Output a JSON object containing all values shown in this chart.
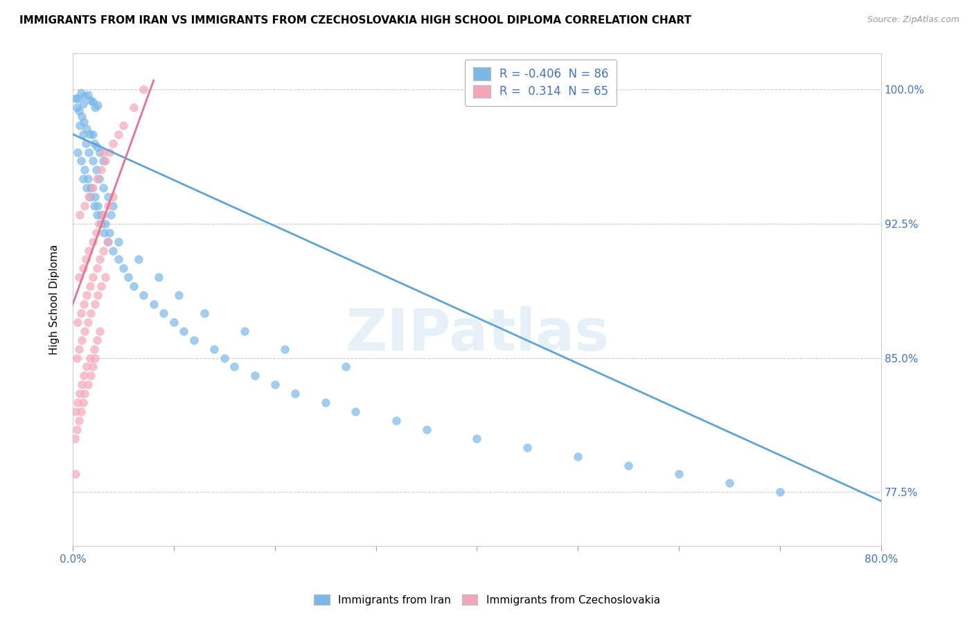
{
  "title": "IMMIGRANTS FROM IRAN VS IMMIGRANTS FROM CZECHOSLOVAKIA HIGH SCHOOL DIPLOMA CORRELATION CHART",
  "source": "Source: ZipAtlas.com",
  "ylabel": "High School Diploma",
  "xlim": [
    0.0,
    80.0
  ],
  "ylim": [
    74.5,
    102.0
  ],
  "yticks": [
    77.5,
    85.0,
    92.5,
    100.0
  ],
  "xticks": [
    0.0,
    10.0,
    20.0,
    30.0,
    40.0,
    50.0,
    60.0,
    70.0,
    80.0
  ],
  "iran_color": "#7ab8e8",
  "czech_color": "#f4a7b9",
  "iran_line_color": "#5ba3d9",
  "czech_line_color": "#e87090",
  "iran_R": -0.406,
  "iran_N": 86,
  "czech_R": 0.314,
  "czech_N": 65,
  "watermark": "ZIPatlas",
  "background_color": "#ffffff",
  "grid_color": "#cccccc",
  "iran_scatter_x": [
    0.5,
    0.8,
    1.0,
    1.2,
    1.5,
    1.8,
    2.0,
    2.2,
    2.5,
    0.3,
    0.6,
    0.9,
    1.1,
    1.4,
    1.7,
    2.1,
    2.4,
    2.7,
    3.0,
    0.4,
    0.7,
    1.0,
    1.3,
    1.6,
    2.0,
    2.3,
    2.6,
    3.0,
    3.5,
    4.0,
    0.5,
    0.8,
    1.2,
    1.5,
    1.8,
    2.2,
    2.5,
    2.8,
    3.2,
    3.6,
    1.0,
    1.4,
    1.7,
    2.1,
    2.4,
    2.8,
    3.1,
    3.5,
    4.0,
    4.5,
    5.0,
    5.5,
    6.0,
    7.0,
    8.0,
    9.0,
    10.0,
    11.0,
    12.0,
    14.0,
    15.0,
    16.0,
    18.0,
    20.0,
    22.0,
    25.0,
    28.0,
    32.0,
    35.0,
    40.0,
    45.0,
    50.0,
    55.0,
    60.0,
    65.0,
    70.0,
    4.5,
    6.5,
    8.5,
    10.5,
    13.0,
    17.0,
    21.0,
    27.0,
    2.0,
    3.8
  ],
  "iran_scatter_y": [
    99.5,
    99.8,
    99.2,
    99.6,
    99.7,
    99.4,
    99.3,
    99.0,
    99.1,
    99.5,
    98.8,
    98.5,
    98.2,
    97.8,
    97.5,
    97.0,
    96.8,
    96.5,
    96.0,
    99.0,
    98.0,
    97.5,
    97.0,
    96.5,
    96.0,
    95.5,
    95.0,
    94.5,
    94.0,
    93.5,
    96.5,
    96.0,
    95.5,
    95.0,
    94.5,
    94.0,
    93.5,
    93.0,
    92.5,
    92.0,
    95.0,
    94.5,
    94.0,
    93.5,
    93.0,
    92.5,
    92.0,
    91.5,
    91.0,
    90.5,
    90.0,
    89.5,
    89.0,
    88.5,
    88.0,
    87.5,
    87.0,
    86.5,
    86.0,
    85.5,
    85.0,
    84.5,
    84.0,
    83.5,
    83.0,
    82.5,
    82.0,
    81.5,
    81.0,
    80.5,
    80.0,
    79.5,
    79.0,
    78.5,
    78.0,
    77.5,
    91.5,
    90.5,
    89.5,
    88.5,
    87.5,
    86.5,
    85.5,
    84.5,
    97.5,
    93.0
  ],
  "czech_scatter_x": [
    0.2,
    0.4,
    0.6,
    0.8,
    1.0,
    1.2,
    1.5,
    1.8,
    2.0,
    2.2,
    0.3,
    0.5,
    0.7,
    0.9,
    1.1,
    1.4,
    1.7,
    2.1,
    2.4,
    2.7,
    0.4,
    0.6,
    0.9,
    1.2,
    1.5,
    1.8,
    2.2,
    2.5,
    2.8,
    3.2,
    0.5,
    0.8,
    1.1,
    1.4,
    1.7,
    2.0,
    2.4,
    2.7,
    3.0,
    3.4,
    0.6,
    1.0,
    1.3,
    1.6,
    2.0,
    2.3,
    2.6,
    3.0,
    3.5,
    4.0,
    0.7,
    1.2,
    1.6,
    2.0,
    2.4,
    2.8,
    3.2,
    3.6,
    4.0,
    4.5,
    5.0,
    6.0,
    7.0,
    3.0,
    0.3
  ],
  "czech_scatter_y": [
    80.5,
    81.0,
    81.5,
    82.0,
    82.5,
    83.0,
    83.5,
    84.0,
    84.5,
    85.0,
    82.0,
    82.5,
    83.0,
    83.5,
    84.0,
    84.5,
    85.0,
    85.5,
    86.0,
    86.5,
    85.0,
    85.5,
    86.0,
    86.5,
    87.0,
    87.5,
    88.0,
    88.5,
    89.0,
    89.5,
    87.0,
    87.5,
    88.0,
    88.5,
    89.0,
    89.5,
    90.0,
    90.5,
    91.0,
    91.5,
    89.5,
    90.0,
    90.5,
    91.0,
    91.5,
    92.0,
    92.5,
    93.0,
    93.5,
    94.0,
    93.0,
    93.5,
    94.0,
    94.5,
    95.0,
    95.5,
    96.0,
    96.5,
    97.0,
    97.5,
    98.0,
    99.0,
    100.0,
    96.5,
    78.5
  ],
  "iran_line_x": [
    0.0,
    80.0
  ],
  "iran_line_y": [
    97.5,
    77.0
  ],
  "czech_line_x": [
    0.0,
    8.0
  ],
  "czech_line_y": [
    88.0,
    100.5
  ]
}
